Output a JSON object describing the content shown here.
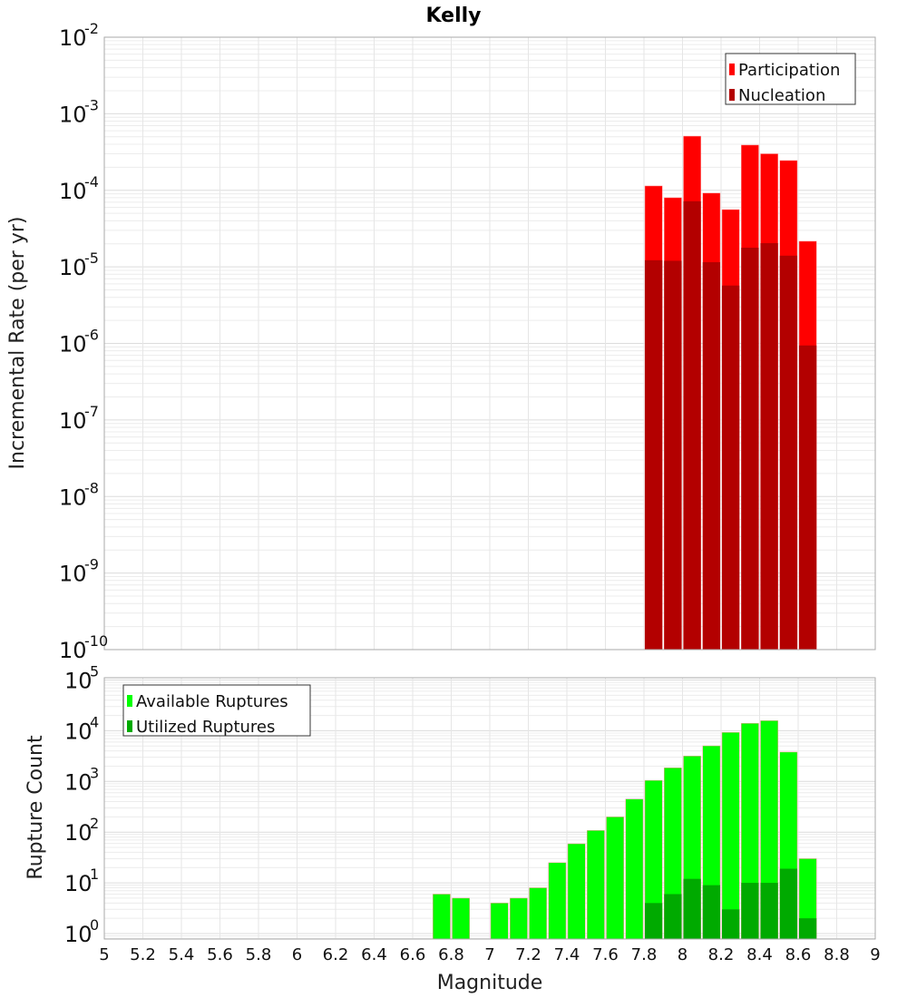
{
  "chart_data": [
    {
      "type": "bar",
      "title": "Kelly",
      "xlabel": "Magnitude",
      "ylabel": "Incremental Rate (per yr)",
      "yscale": "log",
      "ylim": [
        1e-10,
        0.01
      ],
      "xlim": [
        5,
        9
      ],
      "ytick_base": "10",
      "ytick_exponents": [
        "-10",
        "-9",
        "-8",
        "-7",
        "-6",
        "-5",
        "-4",
        "-3",
        "-2"
      ],
      "legend_position": "top-right",
      "bin_width": 0.1,
      "x": [
        7.8,
        7.9,
        8.0,
        8.1,
        8.2,
        8.3,
        8.4,
        8.5,
        8.6
      ],
      "series": [
        {
          "name": "Participation",
          "color": "#ff0000",
          "values": [
            0.000114,
            8e-05,
            0.00051,
            9.2e-05,
            5.6e-05,
            0.00039,
            0.0003,
            0.000245,
            2.16e-05
          ]
        },
        {
          "name": "Nucleation",
          "color": "#b30000",
          "values": [
            1.22e-05,
            1.2e-05,
            7.2e-05,
            1.15e-05,
            5.7e-06,
            1.78e-05,
            2.04e-05,
            1.4e-05,
            9.4e-07
          ]
        }
      ],
      "grid": true
    },
    {
      "type": "bar",
      "xlabel": "Magnitude",
      "ylabel": "Rupture Count",
      "yscale": "log",
      "ylim": [
        0.78,
        111000.0
      ],
      "xlim": [
        5,
        9
      ],
      "ytick_base": "10",
      "ytick_exponents": [
        "0",
        "1",
        "2",
        "3",
        "4",
        "5"
      ],
      "xticks": [
        "5",
        "5.2",
        "5.4",
        "5.6",
        "5.8",
        "6",
        "6.2",
        "6.4",
        "6.6",
        "6.8",
        "7",
        "7.2",
        "7.4",
        "7.6",
        "7.8",
        "8",
        "8.2",
        "8.4",
        "8.6",
        "8.8",
        "9"
      ],
      "legend_position": "top-left",
      "bin_width": 0.1,
      "x": [
        6.7,
        6.8,
        6.9,
        7.0,
        7.1,
        7.2,
        7.3,
        7.4,
        7.5,
        7.6,
        7.7,
        7.8,
        7.9,
        8.0,
        8.1,
        8.2,
        8.3,
        8.4,
        8.5,
        8.6
      ],
      "series": [
        {
          "name": "Available Ruptures",
          "color": "#00ff00",
          "values": [
            6,
            5,
            0,
            4,
            5,
            8,
            25,
            59,
            108,
            200,
            449,
            1050,
            1860,
            3170,
            5040,
            9300,
            14000,
            15800,
            3800,
            30
          ]
        },
        {
          "name": "Utilized Ruptures",
          "color": "#00aa00",
          "values": [
            0,
            0,
            0,
            0,
            0,
            0,
            0,
            0,
            0,
            0,
            0,
            4,
            6,
            12,
            9,
            3,
            10,
            10,
            19,
            2
          ]
        }
      ],
      "grid": true
    }
  ]
}
